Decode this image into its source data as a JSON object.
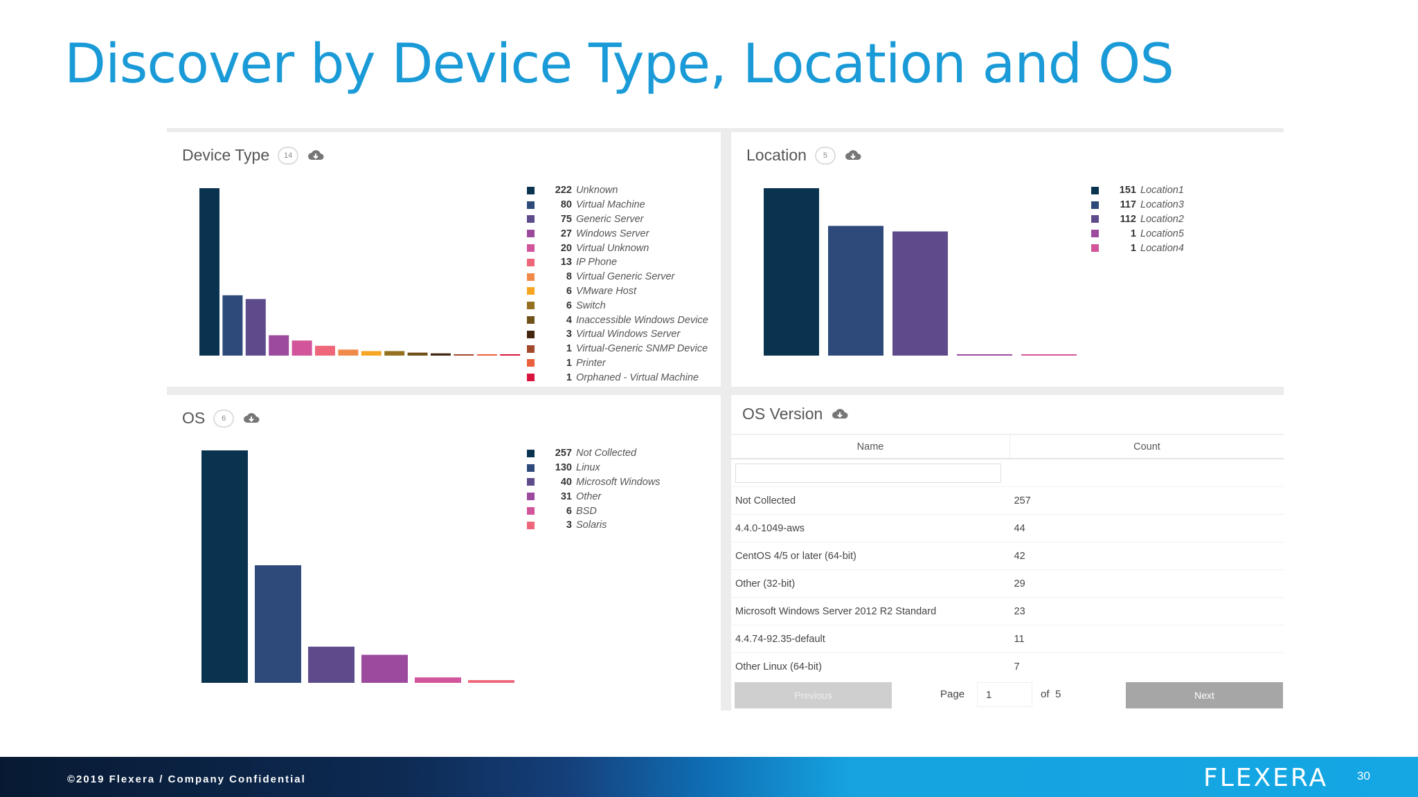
{
  "slide": {
    "title": "Discover by Device Type, Location and OS",
    "footer_text": "©2019 Flexera / Company Confidential",
    "logo_text": "FLEXERA",
    "page_number": "30"
  },
  "colors": {
    "title": "#1a9bd7",
    "palette": [
      "#0a3350",
      "#2e4a7a",
      "#5e4b8c",
      "#9b4a9e",
      "#d2549a",
      "#ee6679",
      "#f08a4b",
      "#f6a623",
      "#94701f",
      "#70511a",
      "#44250f",
      "#a3492b",
      "#e8603c",
      "#d8143e"
    ]
  },
  "panels": {
    "device_type": {
      "title": "Device Type",
      "badge": "14",
      "icon": "cloud-download-icon",
      "chart_data": {
        "type": "bar",
        "categories": [
          "Unknown",
          "Virtual Machine",
          "Generic Server",
          "Windows Server",
          "Virtual Unknown",
          "IP Phone",
          "Virtual Generic Server",
          "VMware Host",
          "Switch",
          "Inaccessible Windows Device",
          "Virtual Windows Server",
          "Virtual-Generic SNMP Device",
          "Printer",
          "Orphaned - Virtual Machine"
        ],
        "values": [
          222,
          80,
          75,
          27,
          20,
          13,
          8,
          6,
          6,
          4,
          3,
          1,
          1,
          1
        ],
        "legend_position": "right"
      }
    },
    "location": {
      "title": "Location",
      "badge": "5",
      "icon": "cloud-download-icon",
      "chart_data": {
        "type": "bar",
        "categories": [
          "Location1",
          "Location3",
          "Location2",
          "Location5",
          "Location4"
        ],
        "values": [
          151,
          117,
          112,
          1,
          1
        ],
        "legend_position": "right"
      }
    },
    "os": {
      "title": "OS",
      "badge": "6",
      "icon": "cloud-download-icon",
      "chart_data": {
        "type": "bar",
        "categories": [
          "Not Collected",
          "Linux",
          "Microsoft Windows",
          "Other",
          "BSD",
          "Solaris"
        ],
        "values": [
          257,
          130,
          40,
          31,
          6,
          3
        ],
        "legend_position": "right"
      }
    },
    "os_version": {
      "title": "OS Version",
      "icon": "cloud-download-icon",
      "columns": [
        "Name",
        "Count"
      ],
      "filter_placeholder": "",
      "rows": [
        {
          "name": "Not Collected",
          "count": "257"
        },
        {
          "name": "4.4.0-1049-aws",
          "count": "44"
        },
        {
          "name": "CentOS 4/5 or later (64-bit)",
          "count": "42"
        },
        {
          "name": "Other (32-bit)",
          "count": "29"
        },
        {
          "name": "Microsoft Windows Server 2012 R2 Standard",
          "count": "23"
        },
        {
          "name": "4.4.74-92.35-default",
          "count": "11"
        },
        {
          "name": "Other Linux (64-bit)",
          "count": "7"
        }
      ],
      "pager": {
        "previous_label": "Previous",
        "page_label": "Page",
        "current_page": "1",
        "of_label": "of",
        "total_pages": "5",
        "next_label": "Next"
      }
    }
  }
}
